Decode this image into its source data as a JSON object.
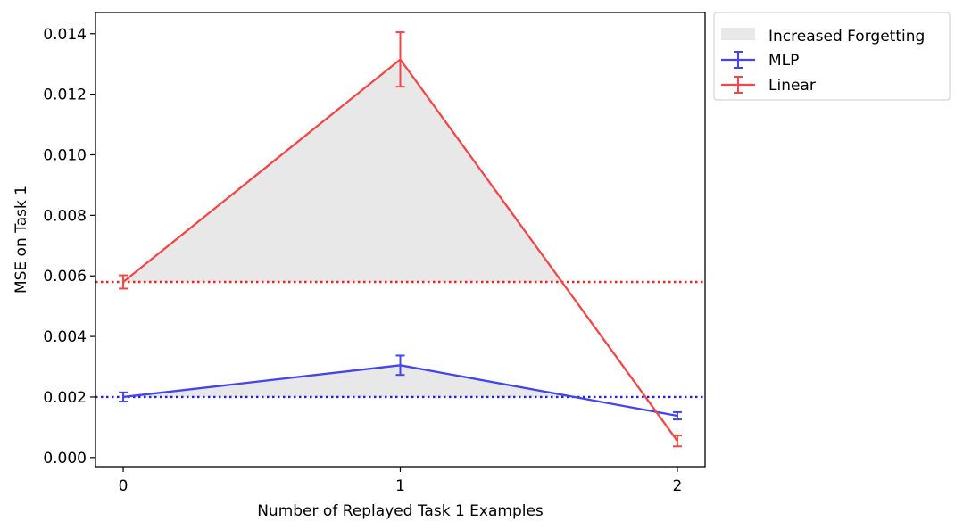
{
  "chart_data": {
    "type": "line",
    "title": "",
    "xlabel": "Number of Replayed Task 1 Examples",
    "ylabel": "MSE on Task 1",
    "x": [
      0,
      1,
      2
    ],
    "x_tick_labels": [
      "0",
      "1",
      "2"
    ],
    "xlim": [
      -0.1,
      2.1
    ],
    "ylim": [
      -0.0003,
      0.0147
    ],
    "y_ticks": [
      0.0,
      0.002,
      0.004,
      0.006,
      0.008,
      0.01,
      0.012,
      0.014
    ],
    "y_tick_labels": [
      "0.000",
      "0.002",
      "0.004",
      "0.006",
      "0.008",
      "0.010",
      "0.012",
      "0.014"
    ],
    "grid": false,
    "legend_position": "outside upper right",
    "fill_label": "Increased Forgetting",
    "fill_color": "#e8e8e8",
    "series": [
      {
        "name": "MLP",
        "color": "#4444ee",
        "values": [
          0.002,
          0.00305,
          0.00138
        ],
        "errors": [
          0.00015,
          0.00032,
          0.00012
        ],
        "baseline": 0.002,
        "baseline_color": "#2222dd"
      },
      {
        "name": "Linear",
        "color": "#f04848",
        "values": [
          0.0058,
          0.01315,
          0.00055
        ],
        "errors": [
          0.00022,
          0.0009,
          0.00018
        ],
        "baseline": 0.0058,
        "baseline_color": "#ee2222"
      }
    ]
  }
}
